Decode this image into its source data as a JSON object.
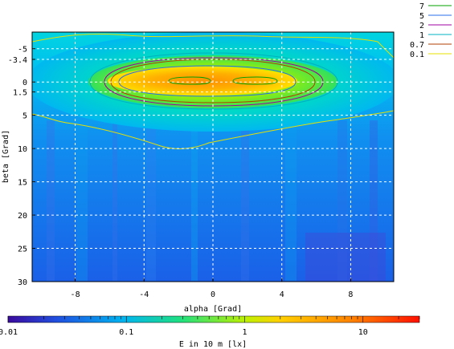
{
  "chart_data": {
    "type": "heatmap",
    "xlabel": "alpha [Grad]",
    "ylabel": "beta [Grad]",
    "xlim": [
      -10.5,
      10.5
    ],
    "ylim": [
      -7.5,
      30
    ],
    "y_inverted": true,
    "x_ticks": [
      "-8",
      "-4",
      "0",
      "4",
      "8"
    ],
    "x_tick_values": [
      -8,
      -4,
      0,
      4,
      8
    ],
    "y_ticks": [
      "-5",
      "-3.4",
      "0",
      "1.5",
      "5",
      "10",
      "15",
      "20",
      "25",
      "30"
    ],
    "y_tick_values": [
      -5,
      -3.4,
      0,
      1.5,
      5,
      10,
      15,
      20,
      25,
      30
    ],
    "grid": true,
    "legend_position": "right",
    "contour_levels": [
      {
        "label": "7",
        "value": 7,
        "color": "#00a000"
      },
      {
        "label": "5",
        "value": 5,
        "color": "#2a6ee8"
      },
      {
        "label": "2",
        "value": 2,
        "color": "#a000a0"
      },
      {
        "label": "1",
        "value": 1,
        "color": "#00b0c0"
      },
      {
        "label": "0.7",
        "value": 0.7,
        "color": "#b04000"
      },
      {
        "label": "0.1",
        "value": 0.1,
        "color": "#e8e000"
      }
    ],
    "colorbar": {
      "title": "E in 10 m [lx]",
      "scale": "log",
      "range": [
        0.01,
        30
      ],
      "tick_labels": [
        "0.01",
        "0.1",
        "1",
        "10"
      ],
      "tick_values": [
        0.01,
        0.1,
        1,
        10
      ]
    },
    "field": {
      "peak_lux": 12,
      "center_alpha": 0,
      "center_beta": 0,
      "background_lux": 0.05
    }
  }
}
